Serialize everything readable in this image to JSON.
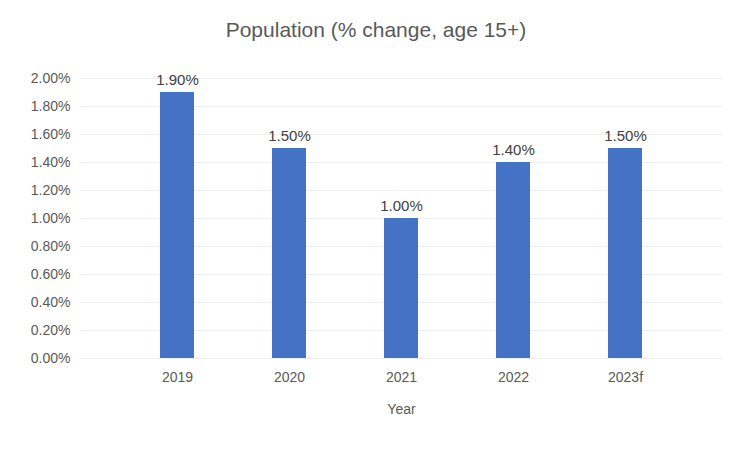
{
  "chart_data": {
    "type": "bar",
    "title": "Population (% change, age 15+)",
    "x_label": "Year",
    "categories": [
      "2019",
      "2020",
      "2021",
      "2022",
      "2023f"
    ],
    "values": [
      1.9,
      1.5,
      1.0,
      1.4,
      1.5
    ],
    "value_labels": [
      "1.90%",
      "1.50%",
      "1.00%",
      "1.40%",
      "1.50%"
    ],
    "data_labels": true,
    "color": "#4472c4",
    "ylim": [
      0,
      2
    ],
    "yticks": [
      {
        "value": 0,
        "label": "0.00%"
      },
      {
        "value": 0.2,
        "label": "0.20%"
      },
      {
        "value": 0.4,
        "label": "0.40%"
      },
      {
        "value": 0.6,
        "label": "0.60%"
      },
      {
        "value": 0.8,
        "label": "0.80%"
      },
      {
        "value": 1.0,
        "label": "1.00%"
      },
      {
        "value": 1.2,
        "label": "1.20%"
      },
      {
        "value": 1.4,
        "label": "1.40%"
      },
      {
        "value": 1.6,
        "label": "1.60%"
      },
      {
        "value": 1.8,
        "label": "1.80%"
      },
      {
        "value": 2.0,
        "label": "2.00%"
      }
    ],
    "grid": true
  }
}
